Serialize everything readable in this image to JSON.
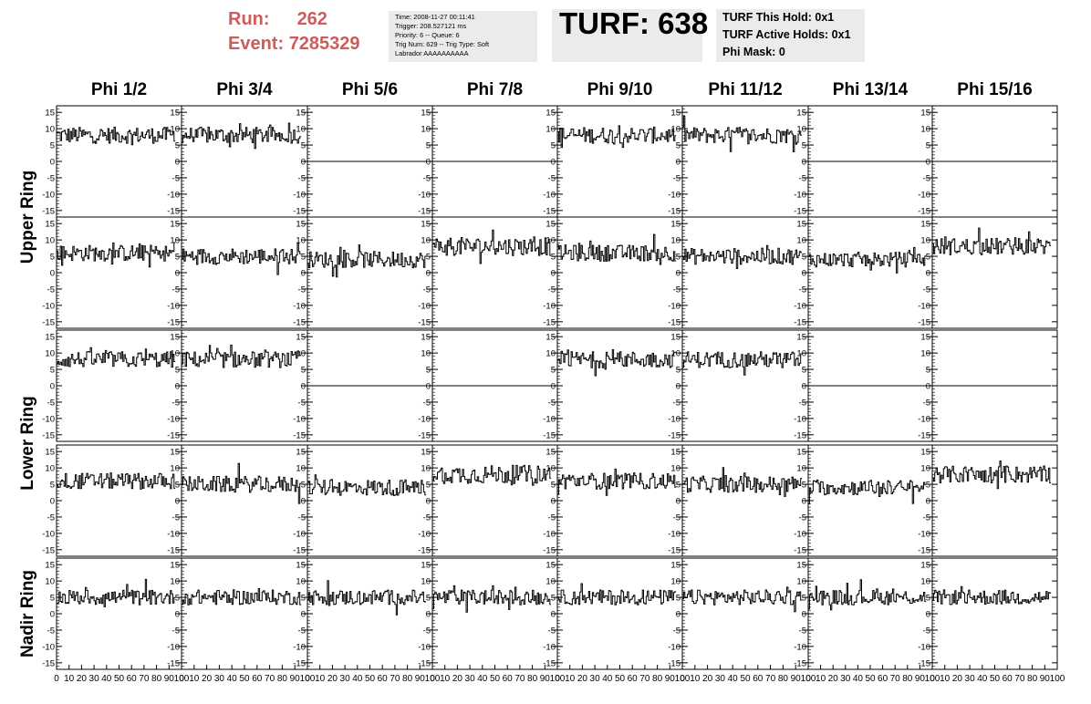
{
  "header": {
    "run_label": "Run:",
    "run_value": "262",
    "event_label": "Event:",
    "event_value": "7285329",
    "accent_color": "#cd5c5c",
    "info_lines": [
      "Time: 2008-11-27 00:11:41",
      "Trigger: 208.527121 ms",
      "Priority: 6 -- Queue: 6",
      "Trig Num: 629 -- Trig Type: Soft",
      "Labrador AAAAAAAAAA"
    ],
    "turf_title": "TURF: 638",
    "hold_lines": [
      "TURF This Hold: 0x1",
      "TURF Active Holds: 0x1",
      "Phi Mask: 0"
    ]
  },
  "chart_data": {
    "type": "line",
    "columns": [
      "Phi 1/2",
      "Phi 3/4",
      "Phi 5/6",
      "Phi 7/8",
      "Phi 9/10",
      "Phi 11/12",
      "Phi 13/14",
      "Phi 15/16"
    ],
    "rings": [
      {
        "name": "Upper Ring",
        "rows": [
          0,
          1
        ]
      },
      {
        "name": "Lower Ring",
        "rows": [
          2,
          3
        ]
      },
      {
        "name": "Nadir Ring",
        "rows": [
          4
        ]
      }
    ],
    "xlim": [
      0,
      100
    ],
    "ylim": [
      -17,
      17
    ],
    "x_ticks": [
      "0",
      "10",
      "20",
      "30",
      "40",
      "50",
      "60",
      "70",
      "80",
      "90",
      "100"
    ],
    "y_ticks": [
      "-15",
      "-10",
      "-5",
      "0",
      "5",
      "10",
      "15"
    ],
    "trace_length": 95,
    "trace_color": "#000000",
    "rows": [
      {
        "levels": [
          8,
          8,
          0,
          0,
          8,
          8,
          0,
          0
        ],
        "noise": [
          2.5,
          2.5,
          0,
          0,
          2.5,
          2.5,
          0,
          0
        ]
      },
      {
        "levels": [
          6,
          5,
          4,
          8,
          6,
          5,
          4,
          8
        ],
        "noise": [
          2.5,
          2.5,
          2.5,
          2.8,
          2.5,
          2.5,
          2.3,
          2.6
        ]
      },
      {
        "levels": [
          8,
          8,
          0,
          0,
          8,
          8,
          0,
          0
        ],
        "noise": [
          2.5,
          2.5,
          0,
          0,
          2.5,
          2.5,
          0,
          0
        ]
      },
      {
        "levels": [
          6,
          5,
          4,
          8,
          6,
          5,
          4,
          8
        ],
        "noise": [
          2.5,
          2.5,
          2.5,
          2.8,
          2.5,
          2.5,
          2.3,
          2.6
        ]
      },
      {
        "levels": [
          5,
          5,
          5,
          5,
          5,
          5,
          5,
          5
        ],
        "noise": [
          2.3,
          2.3,
          2.3,
          2.3,
          2.3,
          2.3,
          2.3,
          2.3
        ]
      }
    ]
  }
}
